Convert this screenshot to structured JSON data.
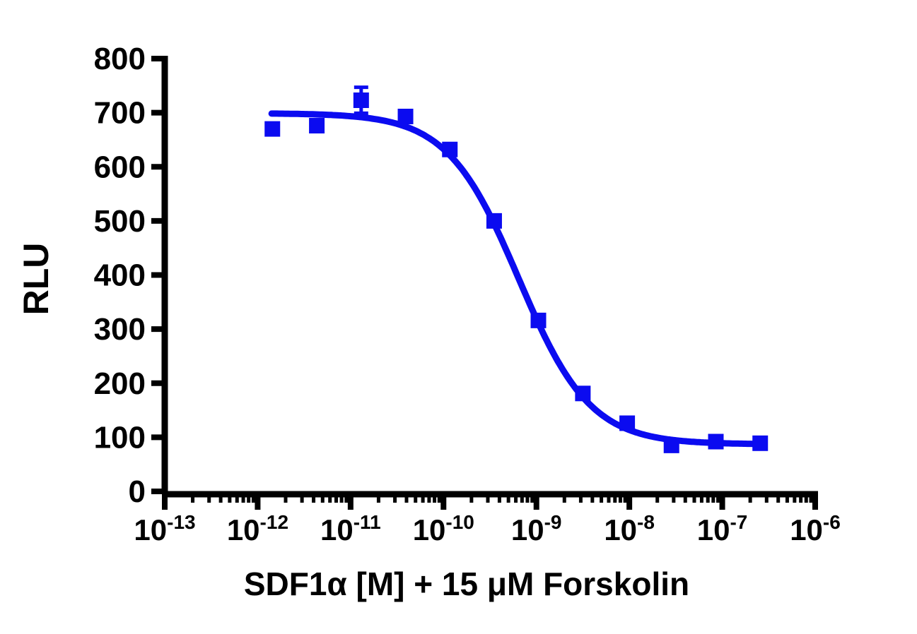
{
  "figure": {
    "background_color": "#ffffff",
    "axis_color": "#000000",
    "series_color": "#0b0bf0"
  },
  "chart_data": {
    "type": "scatter",
    "title": "",
    "xlabel": "SDF1α  [M] + 15 μM Forskolin",
    "ylabel": "RLU",
    "x_scale": "log10",
    "xlim_log10": [
      -13,
      -6
    ],
    "x_tick_base": "10",
    "x_tick_exponents": [
      -13,
      -12,
      -11,
      -10,
      -9,
      -8,
      -7,
      -6
    ],
    "ylim": [
      0,
      800
    ],
    "y_ticks": [
      0,
      100,
      200,
      300,
      400,
      500,
      600,
      700,
      800
    ],
    "grid": false,
    "legend_position": "none",
    "series": [
      {
        "marker": "filled-square",
        "color": "#0b0bf0",
        "points": [
          {
            "conc_M": 1.44e-12,
            "rlu": 670,
            "err": 0
          },
          {
            "conc_M": 4.33e-12,
            "rlu": 676,
            "err": 0
          },
          {
            "conc_M": 1.3e-11,
            "rlu": 723,
            "err": 24
          },
          {
            "conc_M": 3.9e-11,
            "rlu": 693,
            "err": 0
          },
          {
            "conc_M": 1.17e-10,
            "rlu": 632,
            "err": 0
          },
          {
            "conc_M": 3.51e-10,
            "rlu": 500,
            "err": 0
          },
          {
            "conc_M": 1.05e-09,
            "rlu": 316,
            "err": 0
          },
          {
            "conc_M": 3.16e-09,
            "rlu": 181,
            "err": 0
          },
          {
            "conc_M": 9.48e-09,
            "rlu": 126,
            "err": 0
          },
          {
            "conc_M": 2.84e-08,
            "rlu": 85,
            "err": 0
          },
          {
            "conc_M": 8.53e-08,
            "rlu": 92,
            "err": 0
          },
          {
            "conc_M": 2.56e-07,
            "rlu": 89,
            "err": 0
          }
        ]
      }
    ],
    "fit_curve": {
      "model": "four-parameter-logistic-inhibition",
      "top_rlu": 699,
      "bottom_rlu": 87,
      "log10_ic50": -9.19,
      "hill_slope": 1.13,
      "x_range_log10": [
        -11.85,
        -6.57
      ]
    }
  }
}
